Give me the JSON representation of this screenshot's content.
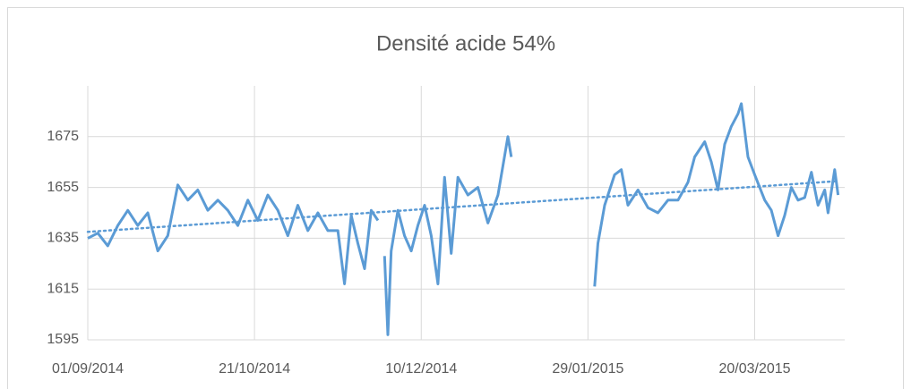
{
  "chart_data": {
    "type": "line",
    "title": "Densité acide 54%",
    "x": [
      "2014-09-01",
      "2014-09-04",
      "2014-09-07",
      "2014-09-10",
      "2014-09-13",
      "2014-09-16",
      "2014-09-19",
      "2014-09-22",
      "2014-09-25",
      "2014-09-28",
      "2014-10-01",
      "2014-10-04",
      "2014-10-07",
      "2014-10-10",
      "2014-10-13",
      "2014-10-16",
      "2014-10-19",
      "2014-10-22",
      "2014-10-25",
      "2014-10-28",
      "2014-10-31",
      "2014-11-03",
      "2014-11-06",
      "2014-11-09",
      "2014-11-12",
      "2014-11-15",
      "2014-11-17",
      "2014-11-19",
      "2014-11-21",
      "2014-11-23",
      "2014-11-25",
      "2014-11-27",
      "2014-11-28",
      "2014-11-29",
      "2014-11-30",
      "2014-12-01",
      "2014-12-03",
      "2014-12-05",
      "2014-12-07",
      "2014-12-09",
      "2014-12-11",
      "2014-12-13",
      "2014-12-15",
      "2014-12-17",
      "2014-12-19",
      "2014-12-21",
      "2014-12-24",
      "2014-12-27",
      "2014-12-30",
      "2015-01-02",
      "2015-01-05",
      "2015-01-06",
      "2015-01-07",
      "2015-01-31",
      "2015-02-01",
      "2015-02-03",
      "2015-02-06",
      "2015-02-08",
      "2015-02-10",
      "2015-02-13",
      "2015-02-16",
      "2015-02-19",
      "2015-02-22",
      "2015-02-25",
      "2015-02-28",
      "2015-03-02",
      "2015-03-05",
      "2015-03-07",
      "2015-03-09",
      "2015-03-11",
      "2015-03-13",
      "2015-03-15",
      "2015-03-16",
      "2015-03-18",
      "2015-03-20",
      "2015-03-23",
      "2015-03-25",
      "2015-03-27",
      "2015-03-29",
      "2015-03-31",
      "2015-04-02",
      "2015-04-04",
      "2015-04-06",
      "2015-04-08",
      "2015-04-10",
      "2015-04-11",
      "2015-04-13",
      "2015-04-14"
    ],
    "values": [
      1635,
      1637,
      1632,
      1640,
      1646,
      1640,
      1645,
      1630,
      1636,
      1656,
      1650,
      1654,
      1646,
      1650,
      1646,
      1640,
      1650,
      1642,
      1652,
      1646,
      1636,
      1648,
      1638,
      1645,
      1638,
      1638,
      1617,
      1644,
      1633,
      1623,
      1646,
      1642,
      null,
      1628,
      1597,
      1630,
      1646,
      1636,
      1630,
      1640,
      1648,
      1636,
      1617,
      1659,
      1629,
      1659,
      1652,
      1655,
      1641,
      1652,
      1675,
      1667,
      null,
      1616,
      1633,
      1648,
      1660,
      1662,
      1648,
      1654,
      1647,
      1645,
      1650,
      1650,
      1657,
      1667,
      1673,
      1665,
      1654,
      1672,
      1679,
      1684,
      1688,
      1667,
      1660,
      1650,
      1646,
      1636,
      1644,
      1655,
      1650,
      1651,
      1661,
      1648,
      1654,
      1645,
      1662,
      1652
    ],
    "color": "#5b9bd5",
    "trendline": {
      "x": [
        "2014-09-01",
        "2015-04-14"
      ],
      "values": [
        1637.5,
        1657.5
      ]
    },
    "xlim": [
      "2014-09-01",
      "2015-04-16"
    ],
    "xticks": [
      {
        "value": "2014-09-01",
        "label": "01/09/2014"
      },
      {
        "value": "2014-10-21",
        "label": "21/10/2014"
      },
      {
        "value": "2014-12-10",
        "label": "10/12/2014"
      },
      {
        "value": "2015-01-29",
        "label": "29/01/2015"
      },
      {
        "value": "2015-03-20",
        "label": "20/03/2015"
      }
    ],
    "ylim": [
      1595,
      1695
    ],
    "yticks": [
      1595,
      1615,
      1635,
      1655,
      1675
    ],
    "grid": true
  }
}
